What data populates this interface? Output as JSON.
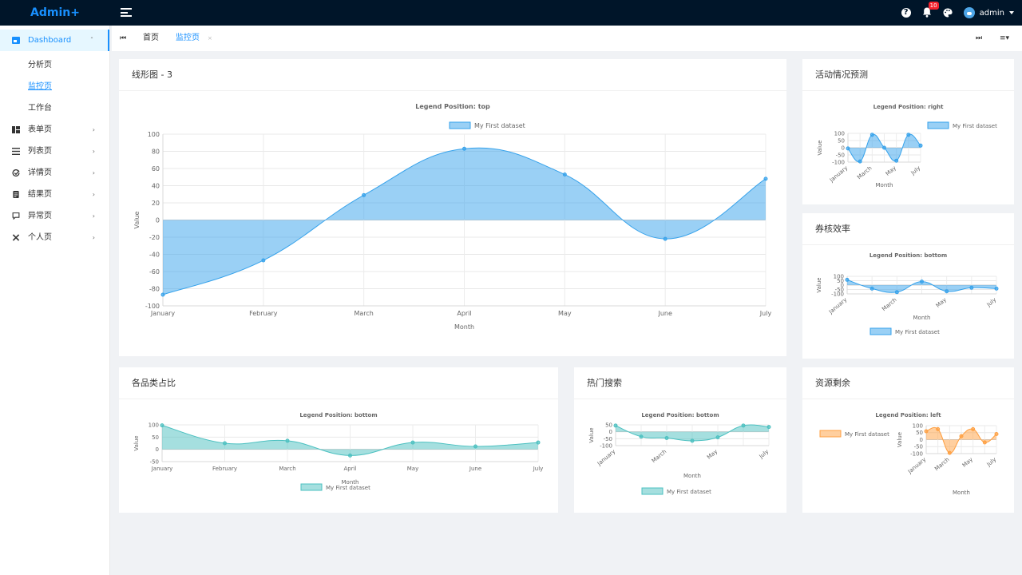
{
  "app": {
    "brand": "Admin+"
  },
  "header": {
    "notification_count": "10",
    "user_name": "admin"
  },
  "sidebar": {
    "dashboard": "Dashboard",
    "sub_items": [
      "分析页",
      "监控页",
      "工作台"
    ],
    "items": [
      "表单页",
      "列表页",
      "详情页",
      "结果页",
      "异常页",
      "个人页"
    ]
  },
  "tabs": {
    "items": [
      "首页",
      "监控页"
    ]
  },
  "colors": {
    "blue": "#36a2eb",
    "teal": "#4bc0c0",
    "orange": "#ff9f40",
    "primary": "#1890ff",
    "header": "#001529"
  },
  "cards": {
    "main": {
      "title": "线形图 - 3"
    },
    "activity": {
      "title": "活动情况预测"
    },
    "voucher": {
      "title": "券核效率"
    },
    "category": {
      "title": "各品类占比"
    },
    "search": {
      "title": "热门搜索"
    },
    "resource": {
      "title": "资源剩余"
    }
  },
  "chart_data": [
    {
      "id": "main",
      "type": "area",
      "title": "Legend Position: top",
      "legend_position": "top",
      "series": [
        {
          "name": "My First dataset",
          "values": [
            -87,
            -47,
            29,
            83,
            53,
            -22,
            48
          ],
          "color": "blue"
        }
      ],
      "categories": [
        "January",
        "February",
        "March",
        "April",
        "May",
        "June",
        "July"
      ],
      "xlabel": "Month",
      "ylabel": "Value",
      "ylim": [
        -100,
        100
      ],
      "yticks": [
        100,
        80,
        60,
        40,
        20,
        0,
        -20,
        -40,
        -60,
        -80,
        -100
      ],
      "grid": true
    },
    {
      "id": "activity",
      "type": "area",
      "title": "Legend Position: right",
      "legend_position": "right",
      "series": [
        {
          "name": "My First dataset",
          "values": [
            -5,
            -95,
            90,
            0,
            -90,
            90,
            15
          ],
          "color": "blue"
        }
      ],
      "categories": [
        "January",
        "February",
        "March",
        "April",
        "May",
        "June",
        "July"
      ],
      "xticklabels": [
        "January",
        "March",
        "May",
        "July"
      ],
      "xlabel": "Month",
      "ylabel": "Value",
      "ylim": [
        -100,
        100
      ],
      "yticks": [
        100,
        50,
        0,
        -50,
        -100
      ],
      "grid": true
    },
    {
      "id": "voucher",
      "type": "area",
      "title": "Legend Position: bottom",
      "legend_position": "bottom",
      "series": [
        {
          "name": "My First dataset",
          "values": [
            60,
            -40,
            -80,
            40,
            -70,
            -30,
            -40
          ],
          "color": "blue"
        }
      ],
      "categories": [
        "January",
        "February",
        "March",
        "April",
        "May",
        "June",
        "July"
      ],
      "xticklabels": [
        "January",
        "March",
        "May",
        "July"
      ],
      "xlabel": "Month",
      "ylabel": "Value",
      "ylim": [
        -100,
        100
      ],
      "yticks": [
        100,
        50,
        0,
        -50,
        -100
      ],
      "grid": true
    },
    {
      "id": "category",
      "type": "area",
      "title": "Legend Position: bottom",
      "legend_position": "bottom",
      "series": [
        {
          "name": "My First dataset",
          "values": [
            98,
            25,
            35,
            -25,
            28,
            12,
            28
          ],
          "color": "teal"
        }
      ],
      "categories": [
        "January",
        "February",
        "March",
        "April",
        "May",
        "June",
        "July"
      ],
      "xlabel": "Month",
      "ylabel": "Value",
      "ylim": [
        -50,
        100
      ],
      "yticks": [
        100,
        50,
        0,
        -50
      ],
      "grid": true
    },
    {
      "id": "search",
      "type": "area",
      "title": "Legend Position: bottom",
      "legend_position": "bottom",
      "series": [
        {
          "name": "My First dataset",
          "values": [
            45,
            -35,
            -45,
            -65,
            -40,
            45,
            35
          ],
          "color": "teal"
        }
      ],
      "categories": [
        "January",
        "February",
        "March",
        "April",
        "May",
        "June",
        "July"
      ],
      "xticklabels": [
        "January",
        "March",
        "May",
        "July"
      ],
      "xlabel": "Month",
      "ylabel": "Value",
      "ylim": [
        -100,
        50
      ],
      "yticks": [
        50,
        0,
        -50,
        -100
      ],
      "grid": true
    },
    {
      "id": "resource",
      "type": "area",
      "title": "Legend Position: left",
      "legend_position": "left",
      "series": [
        {
          "name": "My First dataset",
          "values": [
            60,
            75,
            -95,
            25,
            75,
            -20,
            40
          ],
          "color": "orange"
        }
      ],
      "categories": [
        "January",
        "February",
        "March",
        "April",
        "May",
        "June",
        "July"
      ],
      "xticklabels": [
        "January",
        "March",
        "May",
        "July"
      ],
      "xlabel": "Month",
      "ylabel": "Value",
      "ylim": [
        -100,
        100
      ],
      "yticks": [
        100,
        50,
        0,
        -50,
        -100
      ],
      "grid": true
    }
  ]
}
